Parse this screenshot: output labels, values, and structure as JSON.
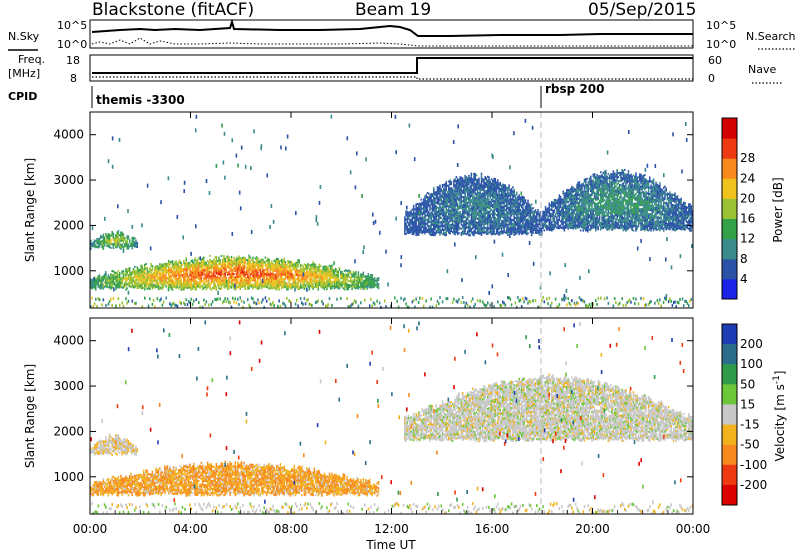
{
  "header": {
    "station": "Blackstone (fitACF)",
    "beam": "Beam 19",
    "date": "05/Sep/2015"
  },
  "nsky_panel": {
    "left_label": "N.Sky",
    "right_label": "N.Search",
    "y_ticks_left": [
      "10^5",
      "10^0"
    ],
    "y_ticks_right": [
      "10^5",
      "10^0"
    ]
  },
  "freq_panel": {
    "left_label_line1": "Freq.",
    "left_label_line2": "[MHz]",
    "right_label": "Nave",
    "y_ticks_left": [
      "18",
      "8"
    ],
    "y_ticks_right": [
      "60",
      "0"
    ]
  },
  "cpid_panel": {
    "label": "CPID",
    "modes": [
      {
        "name": "themis -3300",
        "start_hour": 0
      },
      {
        "name": "rbsp 200",
        "start_hour": 18
      }
    ]
  },
  "x_axis": {
    "title": "Time UT",
    "ticks": [
      "00:00",
      "04:00",
      "08:00",
      "12:00",
      "16:00",
      "20:00",
      "00:00"
    ],
    "range_hours": [
      0,
      24
    ]
  },
  "chart_data": [
    {
      "type": "heatmap",
      "title": "Power",
      "ylabel": "Slant Range [km]",
      "xlabel": "Time UT",
      "x_range_hours": [
        0,
        24
      ],
      "ylim": [
        180,
        4500
      ],
      "y_ticks": [
        1000,
        2000,
        3000,
        4000
      ],
      "colorbar": {
        "label": "Power [dB]",
        "ticks": [
          "4",
          "8",
          "12",
          "16",
          "20",
          "24",
          "28"
        ],
        "colors": [
          "#1a22e8",
          "#2a53a8",
          "#3a8a8a",
          "#33a04a",
          "#9ac234",
          "#f0c21e",
          "#f7891e",
          "#ee3a12",
          "#d40000"
        ]
      },
      "features": [
        {
          "t_start": 0.0,
          "t_end": 1.9,
          "range_low": 1500,
          "range_high": 1850,
          "power_db": 14
        },
        {
          "t_start": 0.0,
          "t_end": 11.5,
          "range_low": 600,
          "range_high": 1300,
          "power_db": 22
        },
        {
          "t_start": 12.5,
          "t_end": 18.0,
          "range_low": 1800,
          "range_high": 3100,
          "power_db": 6
        },
        {
          "t_start": 18.0,
          "t_end": 24.0,
          "range_low": 1900,
          "range_high": 3200,
          "power_db": 8
        }
      ]
    },
    {
      "type": "heatmap",
      "title": "Velocity",
      "ylabel": "Slant Range [km]",
      "xlabel": "Time UT",
      "x_range_hours": [
        0,
        24
      ],
      "ylim": [
        180,
        4500
      ],
      "y_ticks": [
        1000,
        2000,
        3000,
        4000
      ],
      "colorbar": {
        "label": "Velocity [m s^-1]",
        "ticks": [
          "200",
          "100",
          "50",
          "15",
          "-15",
          "-50",
          "-100",
          "-200"
        ],
        "colors": [
          "#1e3cb4",
          "#2a6e8c",
          "#2f9a4a",
          "#6cc83a",
          "#c8c8c8",
          "#f2b21e",
          "#f7891e",
          "#ee3a12",
          "#dc0000"
        ]
      },
      "features": [
        {
          "t_start": 0.0,
          "t_end": 1.9,
          "range_low": 1500,
          "range_high": 1900,
          "velocity_ms": -10
        },
        {
          "t_start": 0.0,
          "t_end": 11.5,
          "range_low": 600,
          "range_high": 1300,
          "velocity_ms": -30
        },
        {
          "t_start": 12.5,
          "t_end": 24.0,
          "range_low": 1800,
          "range_high": 3200,
          "velocity_ms": 0
        }
      ]
    }
  ]
}
